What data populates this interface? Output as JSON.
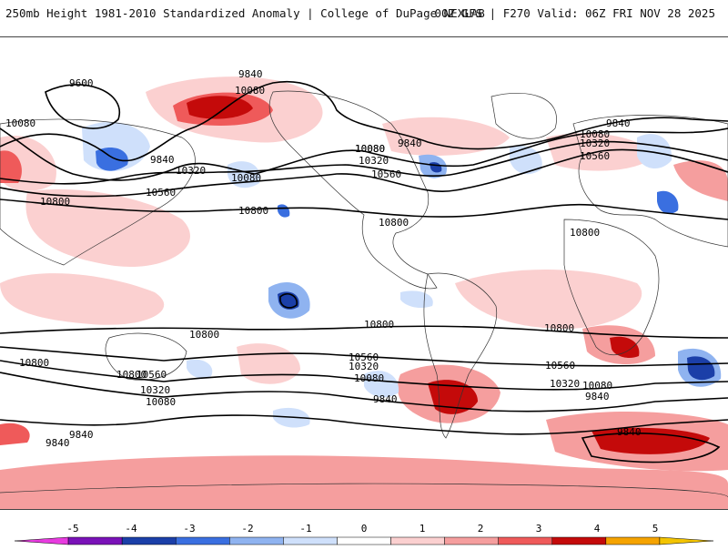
{
  "header": {
    "left_title": "250mb Height 1981-2010 Standardized Anomaly | College of DuPage NEXLAB",
    "right_title": "00Z GFS | F270 Valid: 06Z FRI NOV 28 2025"
  },
  "contour_labels": [
    "9600",
    "9840",
    "10080",
    "10080",
    "10080",
    "9840",
    "10320",
    "10080",
    "10560",
    "10800",
    "10800",
    "9840",
    "10080",
    "10320",
    "10560",
    "10800",
    "9840",
    "10080",
    "10320",
    "10560",
    "10800",
    "10800",
    "10800",
    "10800",
    "10800",
    "10560",
    "10320",
    "10080",
    "10560",
    "10320",
    "10080",
    "9840",
    "10800",
    "10560",
    "10320",
    "10080",
    "9840",
    "9840",
    "9840",
    "9840"
  ],
  "colorbar": {
    "ticks": [
      "-5",
      "-4",
      "-3",
      "-2",
      "-1",
      "0",
      "1",
      "2",
      "3",
      "4",
      "5"
    ],
    "colors": [
      "#e83be0",
      "#7a12b8",
      "#1b3fa8",
      "#3a6fe0",
      "#8fb3f0",
      "#cfe0fb",
      "#ffffff",
      "#fbd0d0",
      "#f59e9e",
      "#ef5a5a",
      "#c40a0a",
      "#f5a300",
      "#f3c400"
    ]
  }
}
